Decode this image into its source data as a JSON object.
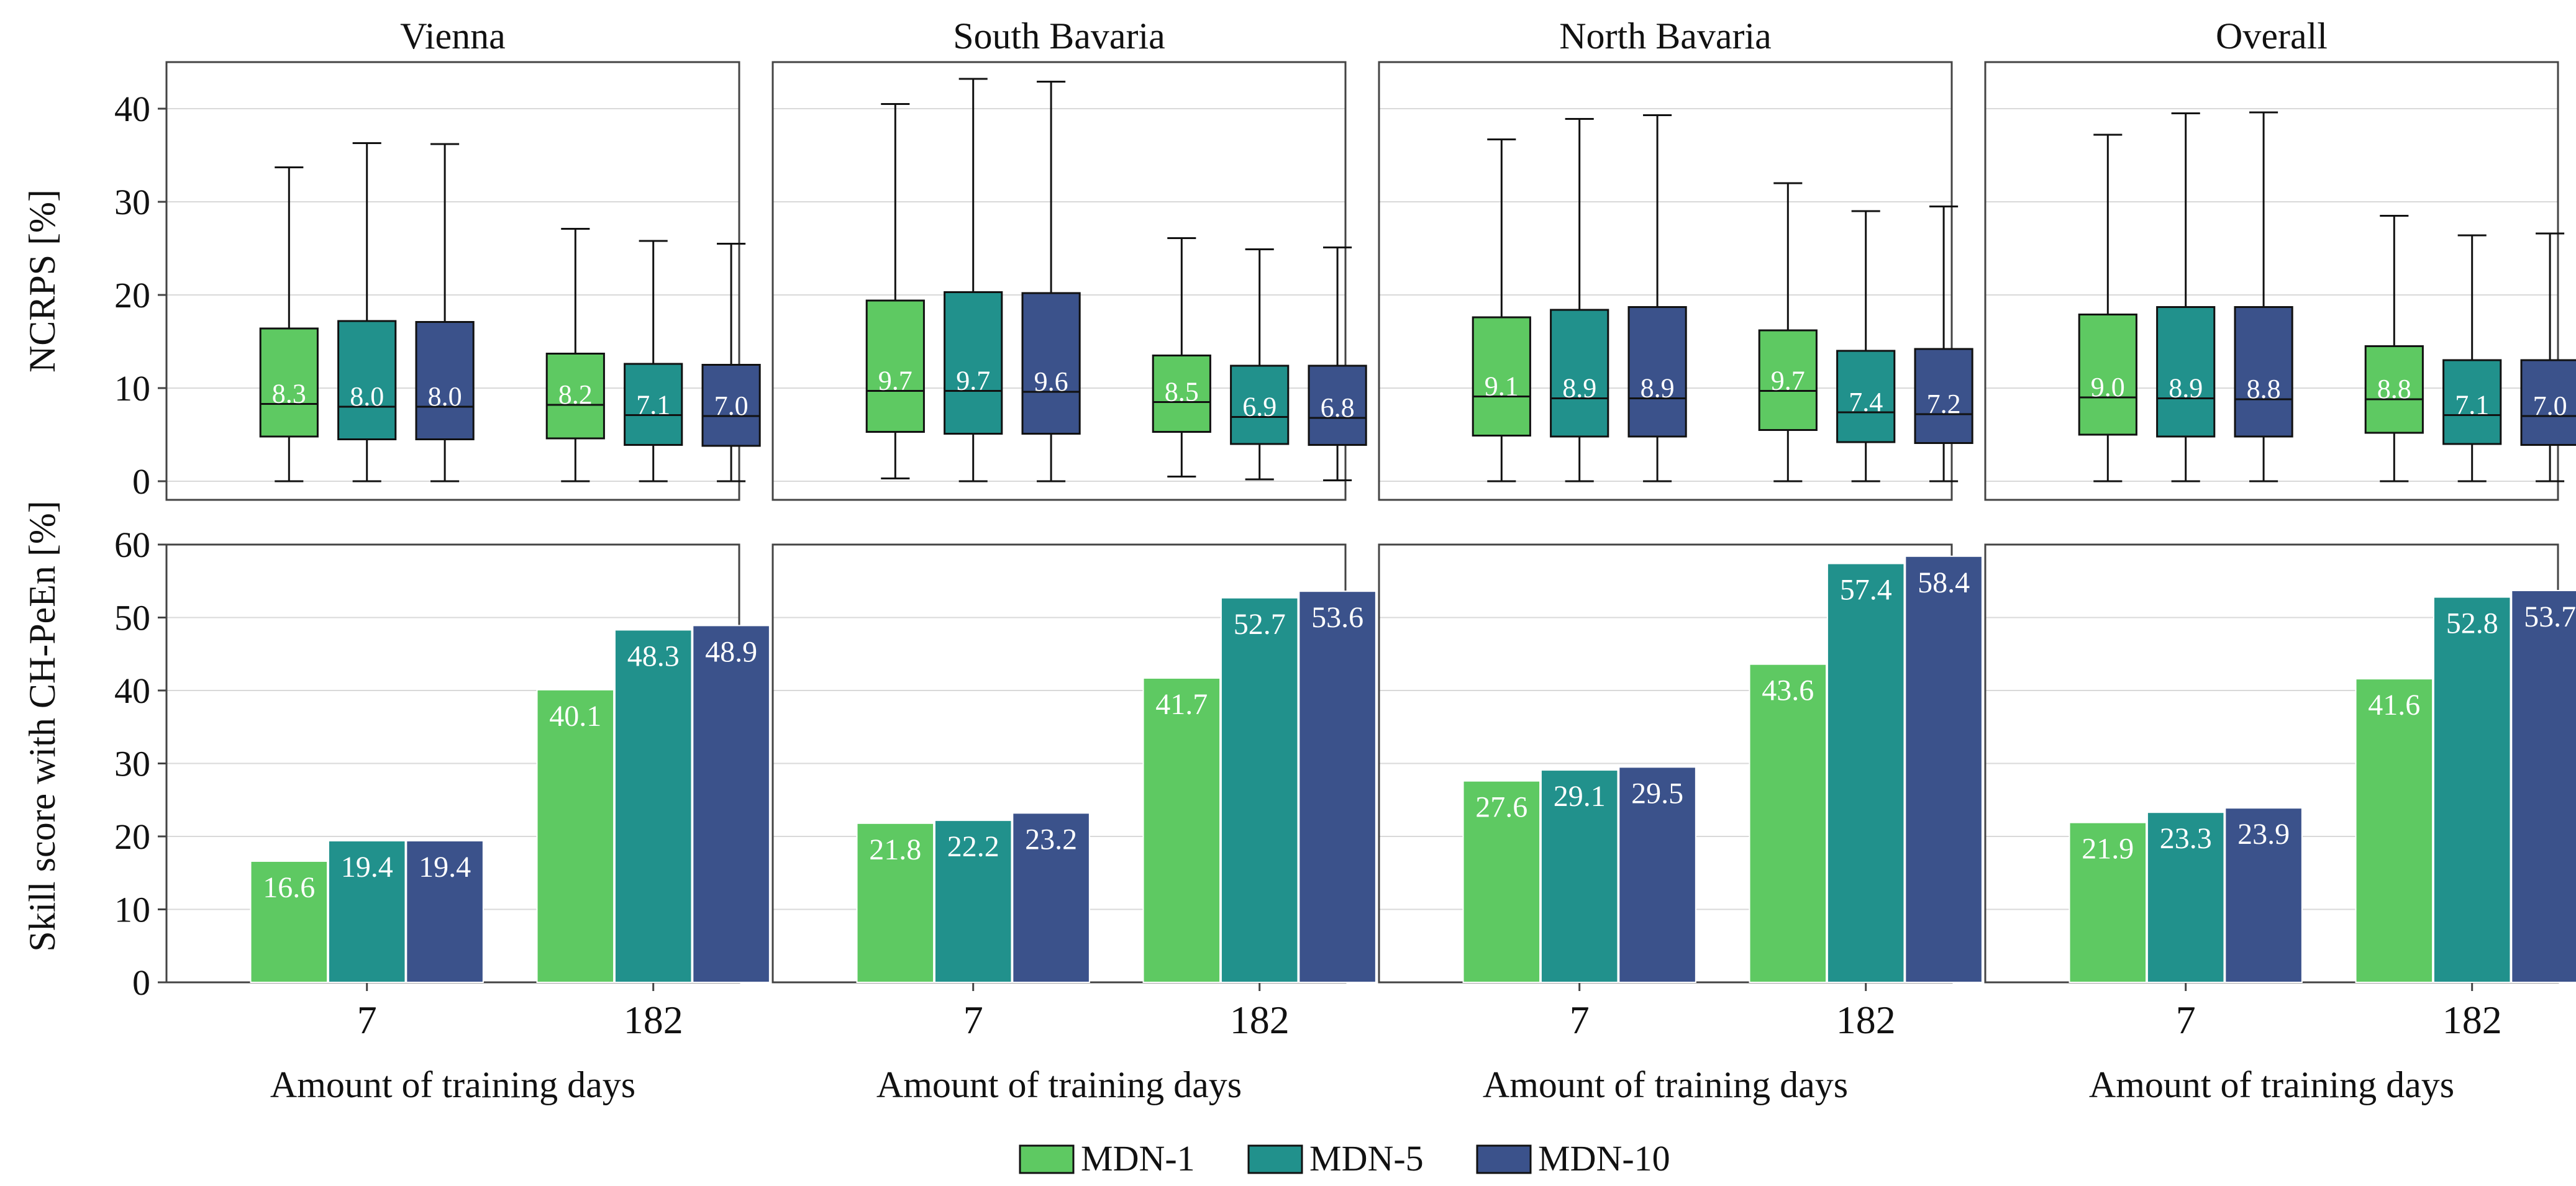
{
  "colors": {
    "MDN-1": "#5ec962",
    "MDN-5": "#21918c",
    "MDN-10": "#3b528b",
    "frame": "#444444",
    "grid": "#d9d9d9"
  },
  "legend": [
    "MDN-1",
    "MDN-5",
    "MDN-10"
  ],
  "chart_data": [
    {
      "type": "box",
      "title": "Vienna",
      "ylabel": "NCRPS [%]",
      "ylim": [
        -2,
        45
      ],
      "yticks": [
        0,
        10,
        20,
        30,
        40
      ],
      "categories": [
        "7",
        "182"
      ],
      "series": [
        {
          "name": "MDN-1",
          "boxes": [
            {
              "min": 0,
              "q1": 4.8,
              "median": 8.3,
              "q3": 16.4,
              "max": 33.7
            },
            {
              "min": 0,
              "q1": 4.6,
              "median": 8.2,
              "q3": 13.7,
              "max": 27.1
            }
          ]
        },
        {
          "name": "MDN-5",
          "boxes": [
            {
              "min": 0,
              "q1": 4.5,
              "median": 8.0,
              "q3": 17.2,
              "max": 36.3
            },
            {
              "min": 0,
              "q1": 3.9,
              "median": 7.1,
              "q3": 12.6,
              "max": 25.8
            }
          ]
        },
        {
          "name": "MDN-10",
          "boxes": [
            {
              "min": 0,
              "q1": 4.5,
              "median": 8.0,
              "q3": 17.1,
              "max": 36.2
            },
            {
              "min": 0,
              "q1": 3.8,
              "median": 7.0,
              "q3": 12.5,
              "max": 25.5
            }
          ]
        }
      ],
      "median_labels": [
        [
          "8.3",
          "8.2"
        ],
        [
          "8.0",
          "7.1"
        ],
        [
          "8.0",
          "7.0"
        ]
      ]
    },
    {
      "type": "box",
      "title": "South Bavaria",
      "ylim": [
        -2,
        45
      ],
      "yticks": [
        0,
        10,
        20,
        30,
        40
      ],
      "categories": [
        "7",
        "182"
      ],
      "series": [
        {
          "name": "MDN-1",
          "boxes": [
            {
              "min": 0.3,
              "q1": 5.3,
              "median": 9.7,
              "q3": 19.4,
              "max": 40.5
            },
            {
              "min": 0.5,
              "q1": 5.3,
              "median": 8.5,
              "q3": 13.5,
              "max": 26.1
            }
          ]
        },
        {
          "name": "MDN-5",
          "boxes": [
            {
              "min": 0,
              "q1": 5.1,
              "median": 9.7,
              "q3": 20.3,
              "max": 43.2
            },
            {
              "min": 0.2,
              "q1": 4.0,
              "median": 6.9,
              "q3": 12.4,
              "max": 24.9
            }
          ]
        },
        {
          "name": "MDN-10",
          "boxes": [
            {
              "min": 0,
              "q1": 5.1,
              "median": 9.6,
              "q3": 20.2,
              "max": 42.9
            },
            {
              "min": 0.1,
              "q1": 3.9,
              "median": 6.8,
              "q3": 12.4,
              "max": 25.1
            }
          ]
        }
      ],
      "median_labels": [
        [
          "9.7",
          "8.5"
        ],
        [
          "9.7",
          "6.9"
        ],
        [
          "9.6",
          "6.8"
        ]
      ]
    },
    {
      "type": "box",
      "title": "North Bavaria",
      "ylim": [
        -2,
        45
      ],
      "yticks": [
        0,
        10,
        20,
        30,
        40
      ],
      "categories": [
        "7",
        "182"
      ],
      "series": [
        {
          "name": "MDN-1",
          "boxes": [
            {
              "min": 0,
              "q1": 4.9,
              "median": 9.1,
              "q3": 17.6,
              "max": 36.7
            },
            {
              "min": 0,
              "q1": 5.5,
              "median": 9.7,
              "q3": 16.2,
              "max": 32.0
            }
          ]
        },
        {
          "name": "MDN-5",
          "boxes": [
            {
              "min": 0,
              "q1": 4.8,
              "median": 8.9,
              "q3": 18.4,
              "max": 38.9
            },
            {
              "min": 0,
              "q1": 4.2,
              "median": 7.4,
              "q3": 14.0,
              "max": 29.0
            }
          ]
        },
        {
          "name": "MDN-10",
          "boxes": [
            {
              "min": 0,
              "q1": 4.8,
              "median": 8.9,
              "q3": 18.7,
              "max": 39.3
            },
            {
              "min": 0,
              "q1": 4.1,
              "median": 7.2,
              "q3": 14.2,
              "max": 29.5
            }
          ]
        }
      ],
      "median_labels": [
        [
          "9.1",
          "9.7"
        ],
        [
          "8.9",
          "7.4"
        ],
        [
          "8.9",
          "7.2"
        ]
      ]
    },
    {
      "type": "box",
      "title": "Overall",
      "ylim": [
        -2,
        45
      ],
      "yticks": [
        0,
        10,
        20,
        30,
        40
      ],
      "categories": [
        "7",
        "182"
      ],
      "series": [
        {
          "name": "MDN-1",
          "boxes": [
            {
              "min": 0,
              "q1": 5.0,
              "median": 9.0,
              "q3": 17.9,
              "max": 37.2
            },
            {
              "min": 0,
              "q1": 5.2,
              "median": 8.8,
              "q3": 14.5,
              "max": 28.5
            }
          ]
        },
        {
          "name": "MDN-5",
          "boxes": [
            {
              "min": 0,
              "q1": 4.8,
              "median": 8.9,
              "q3": 18.7,
              "max": 39.5
            },
            {
              "min": 0,
              "q1": 4.0,
              "median": 7.1,
              "q3": 13.0,
              "max": 26.4
            }
          ]
        },
        {
          "name": "MDN-10",
          "boxes": [
            {
              "min": 0,
              "q1": 4.8,
              "median": 8.8,
              "q3": 18.7,
              "max": 39.6
            },
            {
              "min": 0,
              "q1": 3.9,
              "median": 7.0,
              "q3": 13.0,
              "max": 26.6
            }
          ]
        }
      ],
      "median_labels": [
        [
          "9.0",
          "8.8"
        ],
        [
          "8.9",
          "7.1"
        ],
        [
          "8.8",
          "7.0"
        ]
      ]
    },
    {
      "type": "bar",
      "ylabel": "Skill score with CH-PeEn [%]",
      "xlabel": "Amount of training days",
      "ylim": [
        0,
        60
      ],
      "yticks": [
        0,
        10,
        20,
        30,
        40,
        50,
        60
      ],
      "categories": [
        "7",
        "182"
      ],
      "series": [
        {
          "name": "MDN-1",
          "values": [
            16.6,
            40.1
          ]
        },
        {
          "name": "MDN-5",
          "values": [
            19.4,
            48.3
          ]
        },
        {
          "name": "MDN-10",
          "values": [
            19.4,
            48.9
          ]
        }
      ]
    },
    {
      "type": "bar",
      "xlabel": "Amount of training days",
      "ylim": [
        0,
        60
      ],
      "yticks": [
        0,
        10,
        20,
        30,
        40,
        50,
        60
      ],
      "categories": [
        "7",
        "182"
      ],
      "series": [
        {
          "name": "MDN-1",
          "values": [
            21.8,
            41.7
          ]
        },
        {
          "name": "MDN-5",
          "values": [
            22.2,
            52.7
          ]
        },
        {
          "name": "MDN-10",
          "values": [
            23.2,
            53.6
          ]
        }
      ]
    },
    {
      "type": "bar",
      "xlabel": "Amount of training days",
      "ylim": [
        0,
        60
      ],
      "yticks": [
        0,
        10,
        20,
        30,
        40,
        50,
        60
      ],
      "categories": [
        "7",
        "182"
      ],
      "series": [
        {
          "name": "MDN-1",
          "values": [
            27.6,
            43.6
          ]
        },
        {
          "name": "MDN-5",
          "values": [
            29.1,
            57.4
          ]
        },
        {
          "name": "MDN-10",
          "values": [
            29.5,
            58.4
          ]
        }
      ]
    },
    {
      "type": "bar",
      "xlabel": "Amount of training days",
      "ylim": [
        0,
        60
      ],
      "yticks": [
        0,
        10,
        20,
        30,
        40,
        50,
        60
      ],
      "categories": [
        "7",
        "182"
      ],
      "series": [
        {
          "name": "MDN-1",
          "values": [
            21.9,
            41.6
          ]
        },
        {
          "name": "MDN-5",
          "values": [
            23.3,
            52.8
          ]
        },
        {
          "name": "MDN-10",
          "values": [
            23.9,
            53.7
          ]
        }
      ]
    }
  ]
}
